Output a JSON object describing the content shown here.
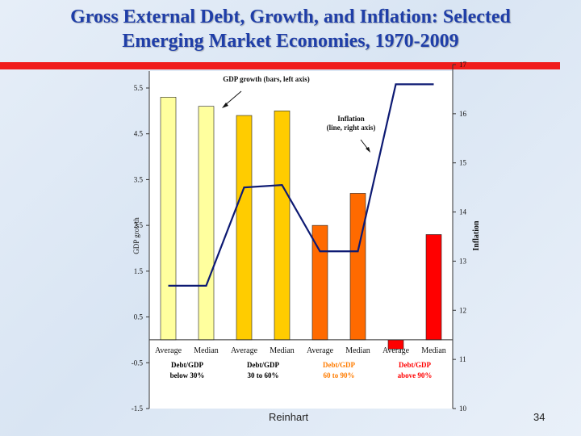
{
  "slide": {
    "title_line1": "Gross External Debt, Growth, and Inflation:  Selected",
    "title_line2": "Emerging Market Economies, 1970-2009",
    "footer_source": "Reinhart",
    "footer_page": "34"
  },
  "chart_data": {
    "type": "bar",
    "categories": [
      "Average",
      "Median",
      "Average",
      "Median",
      "Average",
      "Median",
      "Average",
      "Median"
    ],
    "groups": [
      {
        "label_line1": "Debt/GDP",
        "label_line2": "below 30%",
        "color": "#000000"
      },
      {
        "label_line1": "Debt/GDP",
        "label_line2": "30 to 60%",
        "color": "#000000"
      },
      {
        "label_line1": "Debt/GDP",
        "label_line2": "60 to 90%",
        "color": "#ff7c00"
      },
      {
        "label_line1": "Debt/GDP",
        "label_line2": "above 90%",
        "color": "#ff0000"
      }
    ],
    "bar_colors": [
      "#ffff9e",
      "#ffff9e",
      "#ffcc00",
      "#ffcc00",
      "#ff6a00",
      "#ff6a00",
      "#ff0000",
      "#ff0000"
    ],
    "series": [
      {
        "values": [
          5.3,
          5.1,
          4.9,
          5.0,
          2.5,
          3.2,
          -0.2,
          2.3
        ],
        "axis": "left",
        "kind": "bar"
      },
      {
        "values": [
          12.5,
          12.5,
          14.5,
          14.55,
          13.2,
          13.2,
          16.6,
          16.6
        ],
        "axis": "right",
        "kind": "line",
        "color": "#0d1a73"
      }
    ],
    "ylabel": "GDP growth",
    "y2label": "Inflation",
    "ylim": [
      -1.5,
      6.0
    ],
    "y2lim": [
      10,
      17
    ],
    "y_ticks": [
      "5.5",
      "4.5",
      "3.5",
      "2.5",
      "1.5",
      "0.5",
      "-0.5",
      "-1.5"
    ],
    "y2_ticks": [
      "17",
      "16",
      "15",
      "14",
      "13",
      "12",
      "11",
      "10"
    ],
    "annotations": [
      {
        "line1": "GDP growth (bars, left axis)",
        "line2": ""
      },
      {
        "line1": "Inflation",
        "line2": "(line, right axis)"
      }
    ]
  }
}
